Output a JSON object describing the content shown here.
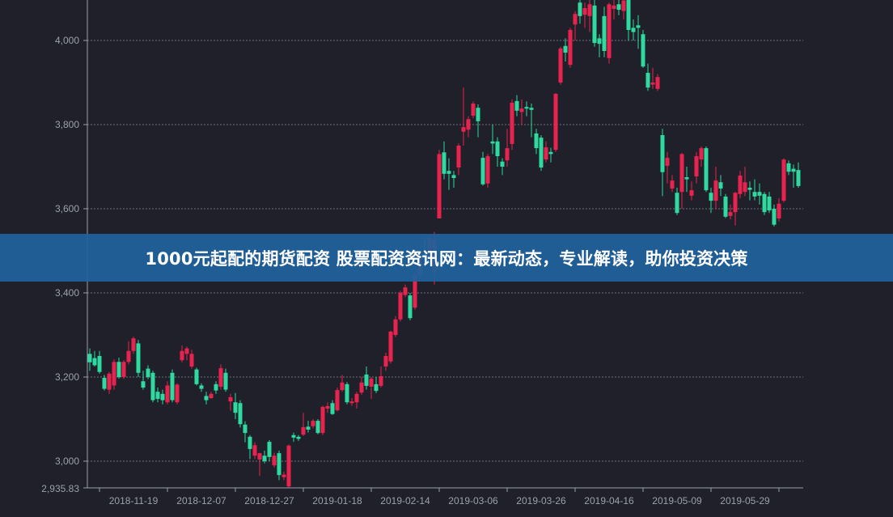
{
  "banner": {
    "text": "1000元起配的期货配资 股票配资资讯网：最新动态，专业解读，助你投资决策"
  },
  "colors": {
    "background": "#1f2029",
    "up": "#e8234f",
    "down": "#2fd99f",
    "axis_text": "#9ba0aa",
    "grid": "#8a8d96",
    "banner": "#1f629c"
  },
  "chart_data": {
    "type": "candlestick",
    "title": "",
    "xlabel": "",
    "ylabel": "",
    "ylim": [
      2935.83,
      4096
    ],
    "y_min_label": "2,935.83",
    "y_ticks": [
      3000,
      3200,
      3400,
      3600,
      3800,
      4000
    ],
    "y_tick_labels": [
      "3,000",
      "3,200",
      "3,400",
      "3,600",
      "3,800",
      "4,000"
    ],
    "x_tick_labels": [
      "2018-11-19",
      "2018-12-07",
      "2018-12-27",
      "2019-01-18",
      "2019-02-14",
      "2019-03-06",
      "2019-03-26",
      "2019-04-16",
      "2019-05-09",
      "2019-05-29"
    ],
    "grid": "horizontal dashed",
    "up_color_meaning": "red = close above open, green = close below open",
    "ohlc": [
      [
        3255,
        3268,
        3215,
        3235
      ],
      [
        3245,
        3262,
        3225,
        3228
      ],
      [
        3250,
        3262,
        3208,
        3212
      ],
      [
        3198,
        3205,
        3168,
        3172
      ],
      [
        3170,
        3212,
        3160,
        3208
      ],
      [
        3180,
        3242,
        3170,
        3236
      ],
      [
        3236,
        3246,
        3196,
        3200
      ],
      [
        3200,
        3240,
        3196,
        3236
      ],
      [
        3236,
        3285,
        3230,
        3262
      ],
      [
        3262,
        3296,
        3255,
        3292
      ],
      [
        3280,
        3288,
        3200,
        3210
      ],
      [
        3190,
        3215,
        3170,
        3175
      ],
      [
        3220,
        3228,
        3195,
        3200
      ],
      [
        3210,
        3215,
        3140,
        3145
      ],
      [
        3165,
        3175,
        3140,
        3148
      ],
      [
        3160,
        3170,
        3135,
        3145
      ],
      [
        3140,
        3190,
        3135,
        3180
      ],
      [
        3210,
        3218,
        3140,
        3145
      ],
      [
        3140,
        3185,
        3135,
        3182
      ],
      [
        3240,
        3275,
        3235,
        3262
      ],
      [
        3255,
        3272,
        3240,
        3268
      ],
      [
        3225,
        3265,
        3220,
        3255
      ],
      [
        3218,
        3222,
        3180,
        3183
      ],
      [
        3180,
        3185,
        3165,
        3172
      ],
      [
        3155,
        3165,
        3135,
        3145
      ],
      [
        3150,
        3165,
        3148,
        3160
      ],
      [
        3183,
        3190,
        3160,
        3168
      ],
      [
        3177,
        3230,
        3170,
        3221
      ],
      [
        3210,
        3220,
        3165,
        3170
      ],
      [
        3142,
        3160,
        3120,
        3152
      ],
      [
        3140,
        3162,
        3100,
        3115
      ],
      [
        3138,
        3145,
        3080,
        3088
      ],
      [
        3087,
        3095,
        3045,
        3067
      ],
      [
        3058,
        3062,
        3005,
        3029
      ],
      [
        3013,
        3045,
        3005,
        3038
      ],
      [
        3004,
        3020,
        2965,
        3019
      ],
      [
        3013,
        3025,
        2995,
        3000
      ],
      [
        3046,
        3050,
        3000,
        3010
      ],
      [
        2990,
        3020,
        2985,
        3013
      ],
      [
        3019,
        3025,
        2955,
        2967
      ],
      [
        2962,
        2975,
        2955,
        2968
      ],
      [
        2940,
        3040,
        2935.83,
        3037
      ],
      [
        3062,
        3068,
        3046,
        3056
      ],
      [
        3058,
        3062,
        3048,
        3053
      ],
      [
        3063,
        3115,
        3060,
        3081
      ],
      [
        3082,
        3096,
        3068,
        3075
      ],
      [
        3083,
        3100,
        3078,
        3096
      ],
      [
        3096,
        3100,
        3064,
        3067
      ],
      [
        3067,
        3132,
        3062,
        3129
      ],
      [
        3125,
        3140,
        3115,
        3131
      ],
      [
        3138,
        3145,
        3110,
        3112
      ],
      [
        3121,
        3175,
        3118,
        3169
      ],
      [
        3169,
        3205,
        3165,
        3187
      ],
      [
        3183,
        3188,
        3135,
        3140
      ],
      [
        3138,
        3150,
        3132,
        3142
      ],
      [
        3140,
        3165,
        3125,
        3160
      ],
      [
        3163,
        3200,
        3158,
        3187
      ],
      [
        3206,
        3225,
        3170,
        3179
      ],
      [
        3177,
        3200,
        3148,
        3196
      ],
      [
        3183,
        3200,
        3162,
        3167
      ],
      [
        3179,
        3225,
        3175,
        3202
      ],
      [
        3225,
        3258,
        3215,
        3250
      ],
      [
        3237,
        3310,
        3232,
        3308
      ],
      [
        3300,
        3345,
        3295,
        3337
      ],
      [
        3337,
        3405,
        3332,
        3400
      ],
      [
        3395,
        3420,
        3390,
        3413
      ],
      [
        3394,
        3400,
        3335,
        3340
      ],
      [
        3365,
        3450,
        3360,
        3442
      ],
      [
        3442,
        3500,
        3440,
        3490
      ],
      [
        3490,
        3530,
        3470,
        3480
      ],
      [
        3480,
        3540,
        3470,
        3530
      ],
      [
        3450,
        3545,
        3420,
        3525
      ],
      [
        3577,
        3740,
        3577,
        3730
      ],
      [
        3734,
        3760,
        3670,
        3683
      ],
      [
        3690,
        3720,
        3645,
        3683
      ],
      [
        3680,
        3690,
        3650,
        3673
      ],
      [
        3698,
        3755,
        3680,
        3750
      ],
      [
        3783,
        3888,
        3750,
        3794
      ],
      [
        3788,
        3820,
        3770,
        3813
      ],
      [
        3821,
        3855,
        3815,
        3850
      ],
      [
        3840,
        3848,
        3770,
        3808
      ],
      [
        3721,
        3735,
        3655,
        3658
      ],
      [
        3660,
        3730,
        3650,
        3725
      ],
      [
        3760,
        3800,
        3730,
        3755
      ],
      [
        3760,
        3770,
        3700,
        3725
      ],
      [
        3712,
        3720,
        3680,
        3700
      ],
      [
        3715,
        3790,
        3700,
        3744
      ],
      [
        3754,
        3860,
        3740,
        3852
      ],
      [
        3856,
        3870,
        3820,
        3833
      ],
      [
        3830,
        3860,
        3800,
        3838
      ],
      [
        3842,
        3855,
        3820,
        3838
      ],
      [
        3840,
        3850,
        3770,
        3835
      ],
      [
        3779,
        3790,
        3730,
        3744
      ],
      [
        3769,
        3775,
        3690,
        3698
      ],
      [
        3717,
        3760,
        3710,
        3746
      ],
      [
        3735,
        3745,
        3710,
        3730
      ],
      [
        3740,
        3875,
        3735,
        3873
      ],
      [
        3900,
        3985,
        3895,
        3981
      ],
      [
        3987,
        4005,
        3950,
        3971
      ],
      [
        3942,
        4030,
        3935,
        4025
      ],
      [
        4038,
        4070,
        4000,
        4063
      ],
      [
        4090,
        4110,
        4040,
        4058
      ],
      [
        4061,
        4090,
        4030,
        4077
      ],
      [
        4058,
        4100,
        4020,
        4086
      ],
      [
        4083,
        4100,
        3985,
        3994
      ],
      [
        4005,
        4015,
        3960,
        3992
      ],
      [
        4058,
        4080,
        3960,
        3975
      ],
      [
        3958,
        4090,
        3945,
        4086
      ],
      [
        4075,
        4100,
        4050,
        4083
      ],
      [
        4086,
        4100,
        4060,
        4073
      ],
      [
        4070,
        4110,
        4050,
        4095
      ],
      [
        4100,
        4110,
        4000,
        4025
      ],
      [
        4030,
        4050,
        4000,
        4020
      ],
      [
        4036,
        4060,
        3980,
        4030
      ],
      [
        4015,
        4025,
        3935,
        3938
      ],
      [
        3923,
        3945,
        3880,
        3888
      ],
      [
        3895,
        3935,
        3885,
        3900
      ],
      [
        3885,
        3920,
        3880,
        3913
      ],
      [
        3775,
        3790,
        3630,
        3687
      ],
      [
        3702,
        3735,
        3660,
        3721
      ],
      [
        3648,
        3680,
        3640,
        3667
      ],
      [
        3638,
        3650,
        3585,
        3590
      ],
      [
        3640,
        3733,
        3600,
        3730
      ],
      [
        3675,
        3700,
        3640,
        3670
      ],
      [
        3631,
        3665,
        3620,
        3644
      ],
      [
        3677,
        3735,
        3660,
        3725
      ],
      [
        3717,
        3748,
        3700,
        3744
      ],
      [
        3744,
        3748,
        3640,
        3644
      ],
      [
        3638,
        3650,
        3590,
        3619
      ],
      [
        3619,
        3700,
        3600,
        3667
      ],
      [
        3663,
        3680,
        3630,
        3648
      ],
      [
        3629,
        3635,
        3578,
        3581
      ],
      [
        3583,
        3610,
        3575,
        3592
      ],
      [
        3592,
        3640,
        3560,
        3638
      ],
      [
        3635,
        3690,
        3625,
        3679
      ],
      [
        3640,
        3700,
        3630,
        3663
      ],
      [
        3650,
        3665,
        3620,
        3645
      ],
      [
        3640,
        3670,
        3620,
        3629
      ],
      [
        3640,
        3660,
        3610,
        3631
      ],
      [
        3635,
        3640,
        3585,
        3592
      ],
      [
        3629,
        3640,
        3590,
        3596
      ],
      [
        3600,
        3610,
        3558,
        3562
      ],
      [
        3577,
        3625,
        3570,
        3612
      ],
      [
        3619,
        3720,
        3615,
        3717
      ],
      [
        3708,
        3715,
        3680,
        3688
      ],
      [
        3695,
        3705,
        3650,
        3688
      ],
      [
        3692,
        3710,
        3650,
        3654
      ]
    ]
  }
}
